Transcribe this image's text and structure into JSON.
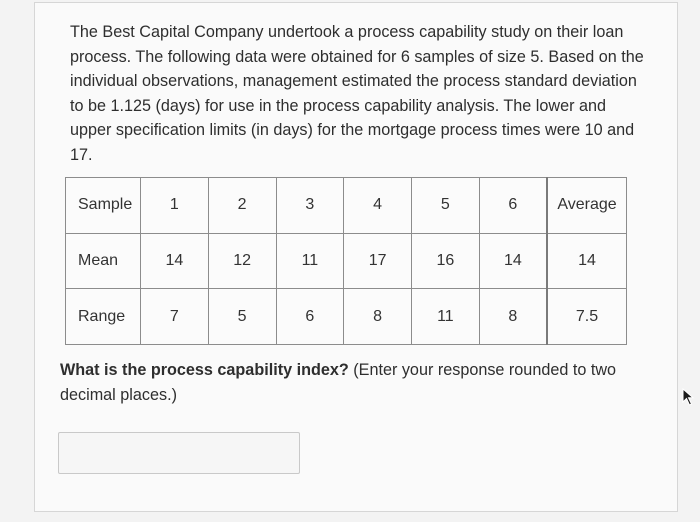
{
  "problem": {
    "intro": "The Best Capital Company undertook a process capability study on their loan process. The following data were obtained for 6 samples of size 5. Based on the individual observations, management estimated the process standard deviation to be 1.125 (days) for use in the process capability analysis. The lower and upper specification limits (in days) for the mortgage process times were 10 and 17.",
    "question_bold": "What is the process capability index?",
    "question_rest": " (Enter your response rounded to two decimal places.)"
  },
  "table": {
    "header": [
      "Sample",
      "1",
      "2",
      "3",
      "4",
      "5",
      "6",
      "Average"
    ],
    "rows": [
      [
        "Mean",
        "14",
        "12",
        "11",
        "17",
        "16",
        "14",
        "14"
      ],
      [
        "Range",
        "7",
        "5",
        "6",
        "8",
        "11",
        "8",
        "7.5"
      ]
    ]
  },
  "answer": {
    "value": "",
    "placeholder": ""
  },
  "icons": {
    "cursor": "mouse-pointer-icon"
  }
}
